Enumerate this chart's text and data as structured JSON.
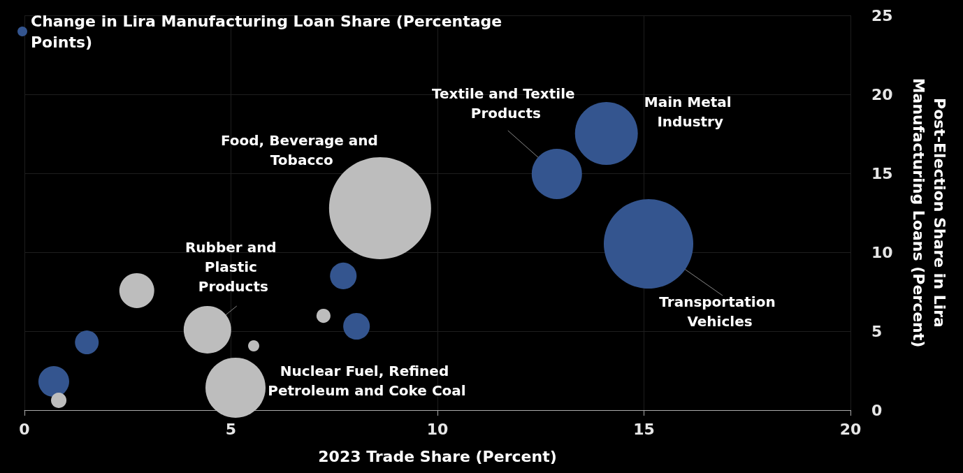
{
  "chart_data": {
    "type": "bubble",
    "xlabel": "2023 Trade Share (Percent)",
    "ylabel": "Post-Election Share in Lira Manufacturing Loans (Percent)",
    "xlim": [
      0,
      20
    ],
    "xticks": [
      0,
      5,
      10,
      15,
      20
    ],
    "ylim": [
      0,
      25
    ],
    "yticks": [
      0,
      5,
      10,
      15,
      20,
      25
    ],
    "grid": true,
    "legend": "top left",
    "series": [
      {
        "name": "Change in Lira Manufacturing Loan Share (Percentage Points)",
        "color": "#34558f",
        "x": [
          0.71,
          1.51,
          7.72,
          8.04,
          12.89,
          14.09,
          15.11
        ],
        "values": [
          1.81,
          4.29,
          8.5,
          5.31,
          14.96,
          17.52,
          10.53
        ],
        "sizes": [
          0.091,
          0.054,
          0.068,
          0.068,
          0.243,
          0.38,
          0.769
        ]
      },
      {
        "color": "#bdbdbd",
        "x": [
          0.83,
          2.72,
          4.43,
          5.11,
          5.55,
          7.24,
          8.61
        ],
        "values": [
          0.62,
          7.57,
          5.09,
          1.42,
          4.07,
          5.97,
          12.79
        ],
        "sizes": [
          0.023,
          0.117,
          0.217,
          0.347,
          0.012,
          0.019,
          1
        ]
      }
    ],
    "annotations": [
      {
        "text": "Food, Beverage and Tobacco",
        "x": 8.61,
        "y": 12.79
      },
      {
        "text": "Textile and Textile Products",
        "x": 12.89,
        "y": 14.96
      },
      {
        "text": "Main Metal Industry",
        "x": 14.09,
        "y": 17.52
      },
      {
        "text": "Rubber and Plastic Products",
        "x": 4.43,
        "y": 5.09
      },
      {
        "text": "Nuclear Fuel, Refined Petroleum and Coke Coal",
        "x": 5.11,
        "y": 1.42
      },
      {
        "text": "Transportation Vehicles",
        "x": 15.11,
        "y": 10.53
      }
    ]
  }
}
